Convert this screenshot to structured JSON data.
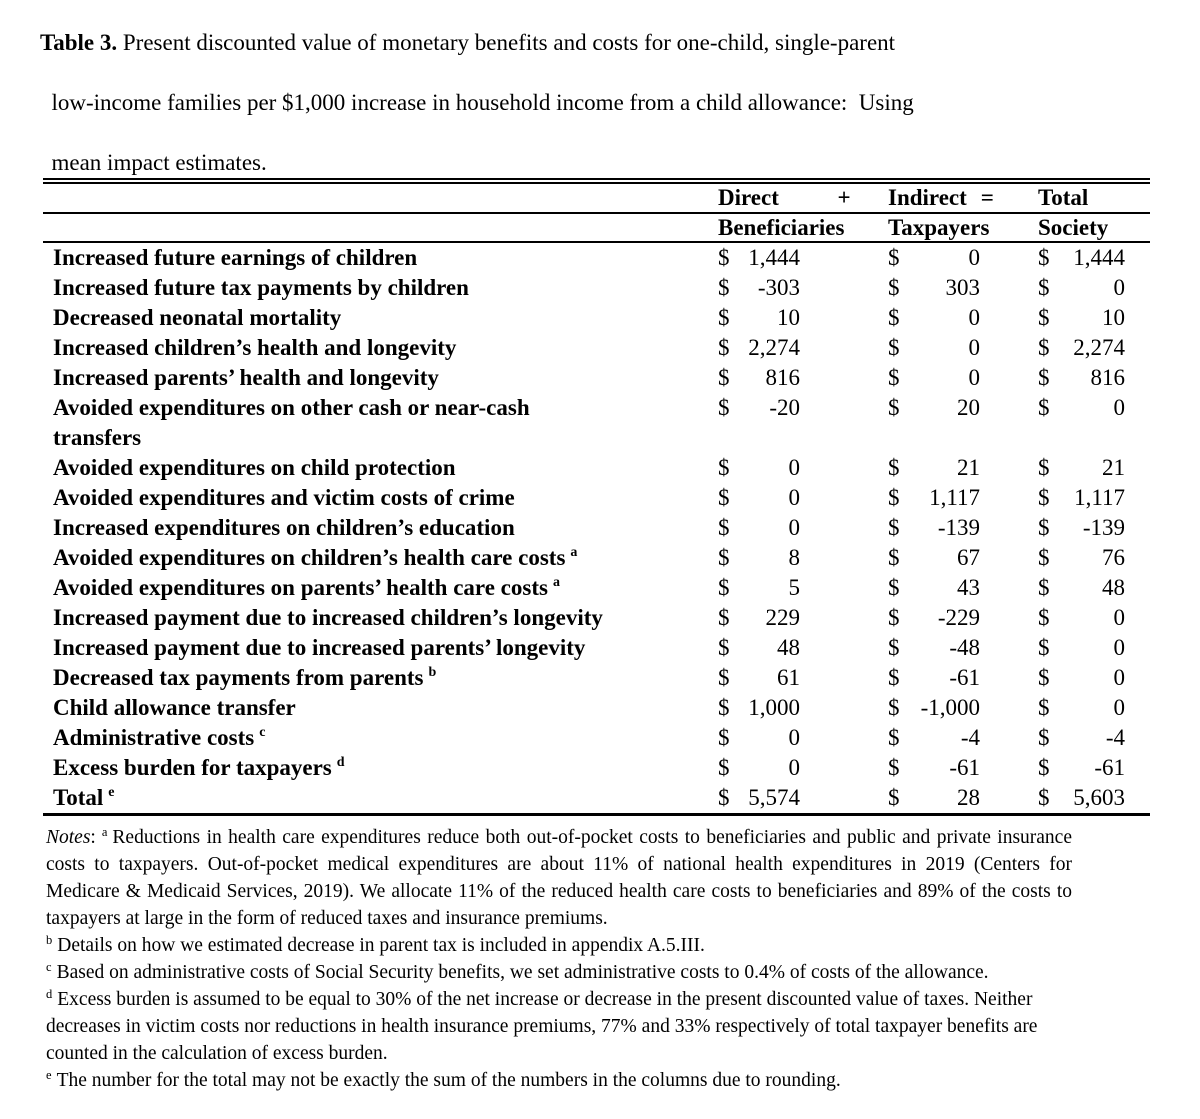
{
  "currency": "$",
  "title": {
    "bold_label": "Table 3.",
    "line1_rest": " Present discounted value of monetary benefits and costs for one-child, single-parent",
    "line2": "low-income families per $1,000 increase in household income from a child allowance:  Using",
    "line3": "mean impact estimates."
  },
  "header": {
    "direct": "Direct",
    "plus": "+",
    "indirect": "Indirect",
    "equals": "=",
    "total": "Total",
    "beneficiaries": "Beneficiaries",
    "taxpayers": "Taxpayers",
    "society": "Society"
  },
  "rows": [
    {
      "label": "Increased future earnings of children",
      "sup": "",
      "ben": "1,444",
      "tax": "0",
      "soc": "1,444"
    },
    {
      "label": "Increased future tax payments by children",
      "sup": "",
      "ben": "-303",
      "tax": "303",
      "soc": "0"
    },
    {
      "label": "Decreased neonatal mortality",
      "sup": "",
      "ben": "10",
      "tax": "0",
      "soc": "10"
    },
    {
      "label": "Increased children’s health and longevity",
      "sup": "",
      "ben": "2,274",
      "tax": "0",
      "soc": "2,274"
    },
    {
      "label": "Increased parents’ health and longevity",
      "sup": "",
      "ben": "816",
      "tax": "0",
      "soc": "816"
    },
    {
      "label": "Avoided expenditures on other cash or near-cash",
      "label2": "transfers",
      "sup": "",
      "ben": "-20",
      "tax": "20",
      "soc": "0"
    },
    {
      "label": "Avoided expenditures on child protection",
      "sup": "",
      "ben": "0",
      "tax": "21",
      "soc": "21"
    },
    {
      "label": "Avoided expenditures and victim costs of crime",
      "sup": "",
      "ben": "0",
      "tax": "1,117",
      "soc": "1,117"
    },
    {
      "label": "Increased expenditures on children’s education",
      "sup": "",
      "ben": "0",
      "tax": "-139",
      "soc": "-139"
    },
    {
      "label": "Avoided expenditures on children’s health care costs",
      "sup": "a",
      "ben": "8",
      "tax": "67",
      "soc": "76"
    },
    {
      "label": "Avoided expenditures on parents’ health care costs",
      "sup": "a",
      "ben": "5",
      "tax": "43",
      "soc": "48"
    },
    {
      "label": "Increased payment due to increased children’s longevity",
      "sup": "",
      "ben": "229",
      "tax": "-229",
      "soc": "0"
    },
    {
      "label": "Increased payment due to increased parents’ longevity",
      "sup": "",
      "ben": "48",
      "tax": "-48",
      "soc": "0"
    },
    {
      "label": "Decreased tax payments from parents",
      "sup": "b",
      "ben": "61",
      "tax": "-61",
      "soc": "0"
    },
    {
      "label": "Child allowance transfer",
      "sup": "",
      "ben": "1,000",
      "tax": "-1,000",
      "soc": "0"
    },
    {
      "label": "Administrative costs",
      "sup": "c",
      "ben": "0",
      "tax": "-4",
      "soc": "-4"
    },
    {
      "label": "Excess burden for taxpayers",
      "sup": "d",
      "ben": "0",
      "tax": "-61",
      "soc": "-61"
    },
    {
      "label": "Total",
      "sup": "e",
      "ben": "5,574",
      "tax": "28",
      "soc": "5,603"
    }
  ],
  "notes": {
    "label": "Notes",
    "colon": ":",
    "items": [
      {
        "sup": "a",
        "justify": true,
        "text": "Reductions in health care expenditures reduce both out-of-pocket costs to beneficiaries and public and private insurance costs to taxpayers. Out-of-pocket medical expenditures are about 11% of national health expenditures in 2019 (Centers for Medicare & Medicaid Services, 2019). We allocate 11% of the reduced health care costs to beneficiaries and 89% of the costs to taxpayers at large in the form of reduced taxes and insurance premiums."
      },
      {
        "sup": "b",
        "justify": false,
        "text": "Details on how we estimated decrease in parent tax is included in appendix A.5.III."
      },
      {
        "sup": "c",
        "justify": true,
        "text": "Based on administrative costs of Social Security benefits, we set administrative costs to 0.4% of costs of the allowance."
      },
      {
        "sup": "d",
        "justify": false,
        "text": "Excess burden is assumed to be equal to 30% of the net increase or decrease in the present discounted value of taxes. Neither decreases in victim costs nor reductions in health insurance premiums, 77% and 33% respectively of total taxpayer benefits are counted in the calculation of excess burden."
      },
      {
        "sup": "e",
        "justify": false,
        "text": "The number for the total may not be exactly the sum of the numbers in the columns due to rounding."
      }
    ]
  }
}
